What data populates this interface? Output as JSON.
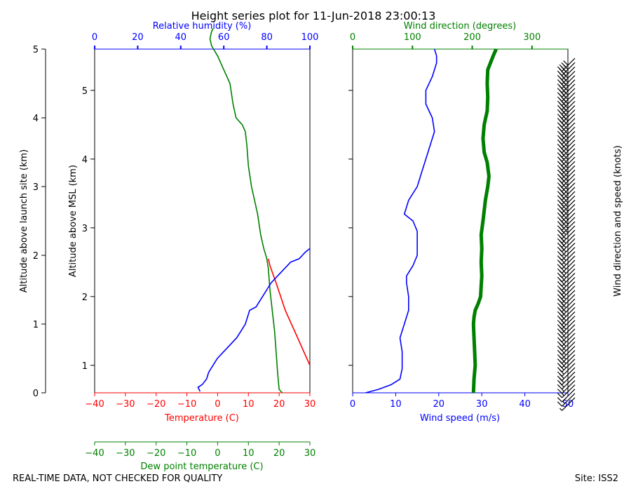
{
  "title": "Height series plot for 11-Jun-2018 23:00:13",
  "footer_left": "REAL-TIME DATA, NOT CHECKED FOR QUALITY",
  "footer_right": "Site: ISS2",
  "colors": {
    "temperature": "#ff0000",
    "dewpoint": "#008000",
    "humidity": "#0000ff",
    "wind_speed": "#0000ff",
    "wind_direction": "#008000",
    "barbs": "#000000"
  },
  "chart_data": [
    {
      "type": "line",
      "title": "",
      "y_axes": [
        {
          "label": "Altitude above launch site (km)",
          "side": "left-outer",
          "range": [
            0,
            5
          ],
          "ticks": [
            0,
            1,
            2,
            3,
            4,
            5
          ],
          "tick_labels": [
            "0",
            "1",
            "2",
            "3",
            "4",
            "5"
          ]
        },
        {
          "label": "Altitude above MSL (km)",
          "side": "left-inner",
          "range": [
            0,
            5
          ],
          "ticks": [
            0.4,
            1.4,
            2.4,
            3.4,
            4.4
          ],
          "tick_labels": [
            "1",
            "2",
            "3",
            "4",
            "5"
          ]
        }
      ],
      "x_axes": [
        {
          "label": "Temperature (C)",
          "position": "bottom",
          "range": [
            -40,
            30
          ],
          "ticks": [
            -40,
            -30,
            -20,
            -10,
            0,
            10,
            20,
            30
          ],
          "tick_labels": [
            "−40",
            "−30",
            "−20",
            "−10",
            "0",
            "10",
            "20",
            "30"
          ]
        },
        {
          "label": "Dew point temperature (C)",
          "position": "bottom-offset",
          "range": [
            -40,
            30
          ],
          "ticks": [
            -40,
            -30,
            -20,
            -10,
            0,
            10,
            20,
            30
          ],
          "tick_labels": [
            "−40",
            "−30",
            "−20",
            "−10",
            "0",
            "10",
            "20",
            "30"
          ]
        },
        {
          "label": "Relative humidity (%)",
          "position": "top",
          "range": [
            0,
            100
          ],
          "ticks": [
            0,
            20,
            40,
            60,
            80,
            100
          ],
          "tick_labels": [
            "0",
            "20",
            "40",
            "60",
            "80",
            "100"
          ]
        }
      ],
      "series": [
        {
          "key": "temperature",
          "axis": "Temperature (C)",
          "points": [
            [
              30,
              0.4
            ],
            [
              26,
              0.8
            ],
            [
              22,
              1.2
            ],
            [
              19,
              1.6
            ],
            [
              17,
              1.85
            ],
            [
              16.5,
              1.95
            ]
          ]
        },
        {
          "key": "dewpoint",
          "axis": "Dew point temperature (C)",
          "points": [
            [
              21,
              0.0
            ],
            [
              20,
              0.05
            ],
            [
              19.5,
              0.3
            ],
            [
              19,
              0.6
            ],
            [
              18.5,
              0.9
            ],
            [
              18,
              1.1
            ],
            [
              17.5,
              1.3
            ],
            [
              17,
              1.5
            ],
            [
              16.5,
              1.8
            ],
            [
              16,
              1.95
            ],
            [
              15,
              2.1
            ],
            [
              14,
              2.3
            ],
            [
              13,
              2.6
            ],
            [
              12,
              2.8
            ],
            [
              11,
              3.0
            ],
            [
              10,
              3.3
            ],
            [
              9.5,
              3.6
            ],
            [
              9,
              3.8
            ],
            [
              8,
              3.9
            ],
            [
              6,
              4.0
            ],
            [
              5,
              4.2
            ],
            [
              4,
              4.5
            ],
            [
              3,
              4.6
            ],
            [
              2,
              4.7
            ],
            [
              0,
              4.9
            ],
            [
              -2,
              5.05
            ],
            [
              -2.5,
              5.15
            ],
            [
              -2,
              5.25
            ],
            [
              -1.5,
              5.3
            ]
          ]
        },
        {
          "key": "humidity",
          "axis": "Relative humidity (%)",
          "points": [
            [
              49,
              0.02
            ],
            [
              48,
              0.08
            ],
            [
              50,
              0.12
            ],
            [
              52,
              0.2
            ],
            [
              53,
              0.3
            ],
            [
              55,
              0.4
            ],
            [
              57,
              0.5
            ],
            [
              60,
              0.6
            ],
            [
              63,
              0.7
            ],
            [
              66,
              0.8
            ],
            [
              68,
              0.9
            ],
            [
              70,
              1.0
            ],
            [
              71,
              1.1
            ],
            [
              72,
              1.2
            ],
            [
              75,
              1.25
            ],
            [
              76,
              1.3
            ],
            [
              78,
              1.4
            ],
            [
              80,
              1.5
            ],
            [
              82,
              1.6
            ],
            [
              85,
              1.7
            ],
            [
              88,
              1.8
            ],
            [
              91,
              1.9
            ],
            [
              95,
              1.95
            ],
            [
              98,
              2.05
            ],
            [
              100,
              2.1
            ]
          ]
        }
      ]
    },
    {
      "type": "line",
      "title": "",
      "y_range": [
        0,
        5
      ],
      "x_axes": [
        {
          "label": "Wind speed (m/s)",
          "position": "bottom",
          "range": [
            0,
            50
          ],
          "ticks": [
            0,
            10,
            20,
            30,
            40,
            50
          ],
          "tick_labels": [
            "0",
            "10",
            "20",
            "30",
            "40",
            "50"
          ]
        },
        {
          "label": "Wind direction (degrees)",
          "position": "top",
          "range": [
            0,
            360
          ],
          "ticks": [
            0,
            100,
            200,
            300
          ],
          "tick_labels": [
            "0",
            "100",
            "200",
            "300"
          ]
        }
      ],
      "right_label": "Wind direction and speed (knots)",
      "series": [
        {
          "key": "wind_speed",
          "axis": "Wind speed (m/s)",
          "points": [
            [
              3,
              0.0
            ],
            [
              6,
              0.05
            ],
            [
              9,
              0.12
            ],
            [
              11,
              0.2
            ],
            [
              11.5,
              0.35
            ],
            [
              11.5,
              0.6
            ],
            [
              11,
              0.8
            ],
            [
              12,
              1.0
            ],
            [
              13,
              1.2
            ],
            [
              13,
              1.4
            ],
            [
              12.5,
              1.6
            ],
            [
              12.5,
              1.7
            ],
            [
              14,
              1.85
            ],
            [
              15,
              2.0
            ],
            [
              15,
              2.2
            ],
            [
              15,
              2.35
            ],
            [
              14,
              2.5
            ],
            [
              12,
              2.6
            ],
            [
              13,
              2.8
            ],
            [
              15,
              3.0
            ],
            [
              16,
              3.2
            ],
            [
              17,
              3.4
            ],
            [
              18,
              3.6
            ],
            [
              19,
              3.8
            ],
            [
              18.5,
              4.0
            ],
            [
              17,
              4.2
            ],
            [
              17,
              4.4
            ],
            [
              18.5,
              4.6
            ],
            [
              19.5,
              4.8
            ],
            [
              19.5,
              4.9
            ],
            [
              19,
              5.0
            ]
          ]
        },
        {
          "key": "wind_direction",
          "axis": "Wind direction (degrees)",
          "points": [
            [
              202,
              0.0
            ],
            [
              203,
              0.2
            ],
            [
              205,
              0.4
            ],
            [
              204,
              0.6
            ],
            [
              203,
              0.8
            ],
            [
              202,
              1.0
            ],
            [
              203,
              1.1
            ],
            [
              205,
              1.2
            ],
            [
              210,
              1.3
            ],
            [
              214,
              1.4
            ],
            [
              215,
              1.55
            ],
            [
              216,
              1.7
            ],
            [
              215,
              1.9
            ],
            [
              216,
              2.1
            ],
            [
              215,
              2.3
            ],
            [
              218,
              2.5
            ],
            [
              222,
              2.8
            ],
            [
              226,
              3.0
            ],
            [
              228,
              3.15
            ],
            [
              225,
              3.35
            ],
            [
              220,
              3.5
            ],
            [
              218,
              3.7
            ],
            [
              220,
              3.9
            ],
            [
              225,
              4.1
            ],
            [
              226,
              4.3
            ],
            [
              225,
              4.5
            ],
            [
              226,
              4.7
            ],
            [
              235,
              4.9
            ],
            [
              240,
              5.0
            ]
          ]
        }
      ],
      "barbs": {
        "direction_deg": 225,
        "knots": [
          5,
          10,
          10,
          15,
          15,
          20,
          20,
          20,
          20,
          25,
          25,
          25,
          25,
          25,
          25,
          25,
          25,
          30,
          30,
          30,
          30,
          30,
          30,
          30,
          30,
          30,
          30,
          25,
          25,
          25,
          25,
          25,
          25,
          25,
          25,
          25,
          30,
          30,
          30,
          30,
          35,
          35,
          35,
          35,
          35,
          35,
          35,
          35,
          35,
          35,
          35,
          35,
          35,
          35,
          35,
          35,
          35,
          35,
          35,
          35,
          35,
          35,
          35,
          35,
          35,
          35,
          40,
          40,
          40,
          40,
          40,
          40,
          40,
          40,
          40,
          40,
          40,
          40,
          40,
          40
        ]
      }
    }
  ]
}
